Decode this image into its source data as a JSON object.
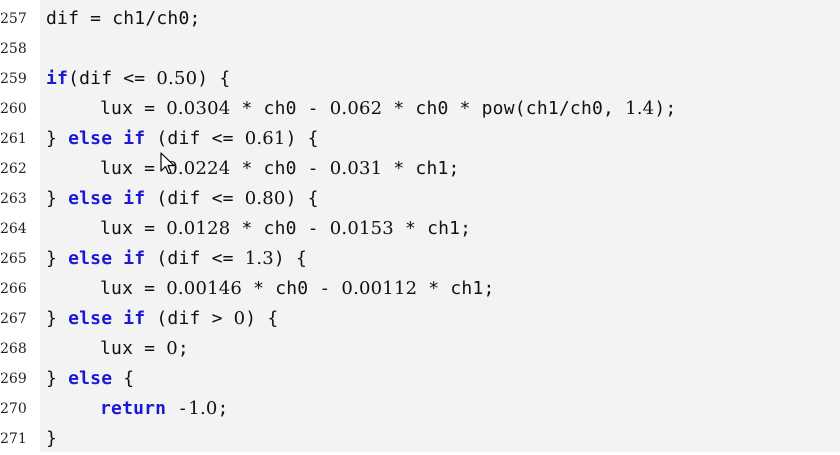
{
  "code_listing": {
    "lines": [
      {
        "num": "257",
        "tokens": [
          {
            "t": "dif = ch1/ch0;",
            "c": ""
          }
        ]
      },
      {
        "num": "258",
        "tokens": []
      },
      {
        "num": "259",
        "tokens": [
          {
            "t": "if",
            "c": "kw"
          },
          {
            "t": "(dif <= ",
            "c": ""
          },
          {
            "t": "0.50",
            "c": "num"
          },
          {
            "t": ") {",
            "c": ""
          }
        ]
      },
      {
        "num": "260",
        "indent": true,
        "tokens": [
          {
            "t": "lux = ",
            "c": ""
          },
          {
            "t": "0.0304",
            "c": "num"
          },
          {
            "t": " * ch0 - ",
            "c": ""
          },
          {
            "t": "0.062",
            "c": "num"
          },
          {
            "t": " * ch0 * pow(ch1/ch0, ",
            "c": ""
          },
          {
            "t": "1.4",
            "c": "num"
          },
          {
            "t": ");",
            "c": ""
          }
        ]
      },
      {
        "num": "261",
        "tokens": [
          {
            "t": "} ",
            "c": ""
          },
          {
            "t": "else if",
            "c": "kw"
          },
          {
            "t": " (dif <= ",
            "c": ""
          },
          {
            "t": "0.61",
            "c": "num"
          },
          {
            "t": ") {",
            "c": ""
          }
        ]
      },
      {
        "num": "262",
        "indent": true,
        "tokens": [
          {
            "t": "lux = ",
            "c": ""
          },
          {
            "t": "0.0224",
            "c": "num"
          },
          {
            "t": " * ch0 - ",
            "c": ""
          },
          {
            "t": "0.031",
            "c": "num"
          },
          {
            "t": " * ch1;",
            "c": ""
          }
        ]
      },
      {
        "num": "263",
        "tokens": [
          {
            "t": "} ",
            "c": ""
          },
          {
            "t": "else if",
            "c": "kw"
          },
          {
            "t": " (dif <= ",
            "c": ""
          },
          {
            "t": "0.80",
            "c": "num"
          },
          {
            "t": ") {",
            "c": ""
          }
        ]
      },
      {
        "num": "264",
        "indent": true,
        "tokens": [
          {
            "t": "lux = ",
            "c": ""
          },
          {
            "t": "0.0128",
            "c": "num"
          },
          {
            "t": " * ch0 - ",
            "c": ""
          },
          {
            "t": "0.0153",
            "c": "num"
          },
          {
            "t": " * ch1;",
            "c": ""
          }
        ]
      },
      {
        "num": "265",
        "tokens": [
          {
            "t": "} ",
            "c": ""
          },
          {
            "t": "else if",
            "c": "kw"
          },
          {
            "t": " (dif <= ",
            "c": ""
          },
          {
            "t": "1.3",
            "c": "num"
          },
          {
            "t": ") {",
            "c": ""
          }
        ]
      },
      {
        "num": "266",
        "indent": true,
        "tokens": [
          {
            "t": "lux = ",
            "c": ""
          },
          {
            "t": "0.00146",
            "c": "num"
          },
          {
            "t": " * ch0 - ",
            "c": ""
          },
          {
            "t": "0.00112",
            "c": "num"
          },
          {
            "t": " * ch1;",
            "c": ""
          }
        ]
      },
      {
        "num": "267",
        "tokens": [
          {
            "t": "} ",
            "c": ""
          },
          {
            "t": "else if",
            "c": "kw"
          },
          {
            "t": " (dif > ",
            "c": ""
          },
          {
            "t": "0",
            "c": "num"
          },
          {
            "t": ") {",
            "c": ""
          }
        ]
      },
      {
        "num": "268",
        "indent": true,
        "tokens": [
          {
            "t": "lux = ",
            "c": ""
          },
          {
            "t": "0",
            "c": "num"
          },
          {
            "t": ";",
            "c": ""
          }
        ]
      },
      {
        "num": "269",
        "tokens": [
          {
            "t": "} ",
            "c": ""
          },
          {
            "t": "else",
            "c": "kw"
          },
          {
            "t": " {",
            "c": ""
          }
        ]
      },
      {
        "num": "270",
        "indent": true,
        "tokens": [
          {
            "t": "return",
            "c": "kw"
          },
          {
            "t": " -",
            "c": ""
          },
          {
            "t": "1.0",
            "c": "num"
          },
          {
            "t": ";",
            "c": ""
          }
        ]
      },
      {
        "num": "271",
        "tokens": [
          {
            "t": "}",
            "c": ""
          }
        ]
      }
    ]
  },
  "colors": {
    "keyword": "#1a1ad6",
    "panel_background": "#f3f3f3",
    "text": "#111111"
  },
  "icons": {
    "cursor": "mouse-pointer-icon"
  }
}
